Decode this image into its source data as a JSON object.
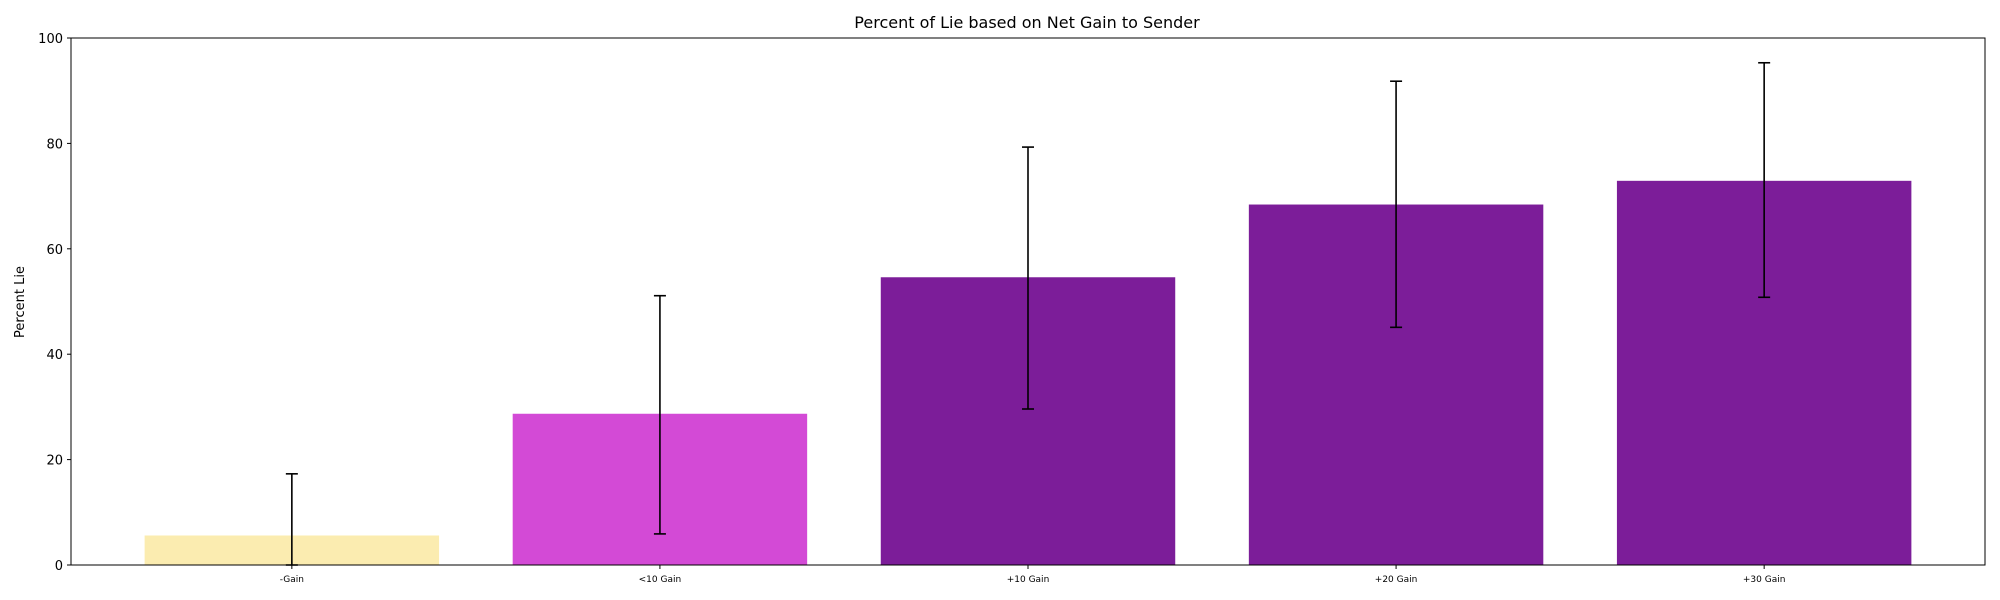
{
  "chart_data": {
    "type": "bar",
    "title": "Percent of Lie based on Net Gain to Sender",
    "xlabel": "",
    "ylabel": "Percent Lie",
    "ylim": [
      0,
      100
    ],
    "yticks": [
      0,
      20,
      40,
      60,
      80,
      100
    ],
    "grid": false,
    "categories": [
      "-Gain",
      "<10 Gain",
      "+10 Gain",
      "+20 Gain",
      "+30 Gain"
    ],
    "values": [
      5.6,
      28.7,
      54.6,
      68.4,
      72.9
    ],
    "error_low": [
      0,
      5.9,
      29.6,
      45.1,
      50.8
    ],
    "error_high": [
      17.3,
      51.1,
      79.3,
      91.8,
      95.3
    ],
    "colors": [
      "#fbecb0",
      "#d34ad6",
      "#7c1d99",
      "#7c1d99",
      "#7c1d99"
    ]
  }
}
